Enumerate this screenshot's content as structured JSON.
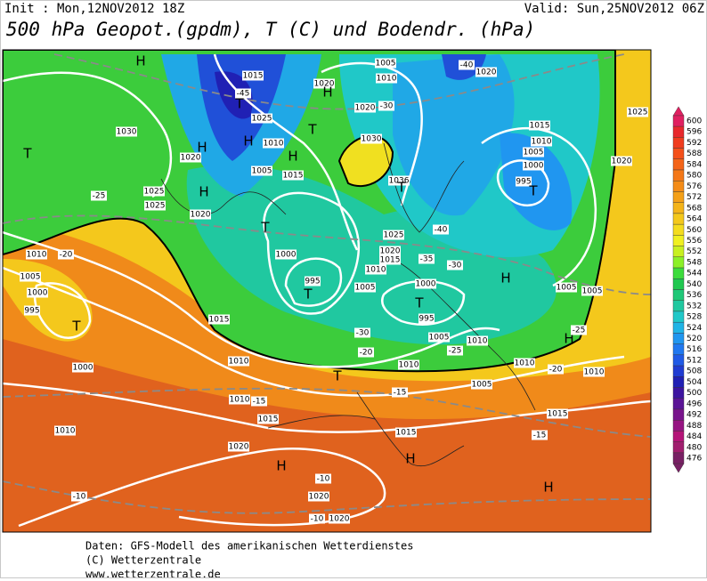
{
  "header": {
    "init": "Init : Mon,12NOV2012 18Z",
    "valid": "Valid: Sun,25NOV2012 06Z",
    "title": "500 hPa Geopot.(gpdm), T (C) und Bodendr. (hPa)"
  },
  "colorbar": {
    "labels": [
      600,
      596,
      592,
      588,
      584,
      580,
      576,
      572,
      568,
      564,
      560,
      556,
      552,
      548,
      544,
      540,
      536,
      532,
      528,
      524,
      520,
      516,
      512,
      508,
      504,
      500,
      496,
      492,
      488,
      484,
      480,
      476
    ],
    "colors": [
      "#e02060",
      "#e8282c",
      "#f03c1e",
      "#f4501a",
      "#f46418",
      "#f47818",
      "#f48c18",
      "#f4a018",
      "#f4b41a",
      "#f4c81c",
      "#f4dc1e",
      "#f0f020",
      "#c8f020",
      "#8cf028",
      "#3cdc3c",
      "#20c850",
      "#20c878",
      "#20c8a0",
      "#20c8c8",
      "#20b4e6",
      "#2096f0",
      "#2078f0",
      "#205ae6",
      "#203cd2",
      "#2020b4",
      "#3c14a0",
      "#5a1496",
      "#78148c",
      "#961482",
      "#b41478",
      "#a01e6e",
      "#782064"
    ]
  },
  "map": {
    "labels": [
      "H",
      "1015",
      "-45",
      "T",
      "1020",
      "H",
      "1005",
      "1010",
      "-40",
      "1020",
      "1025",
      "H",
      "H",
      "1030",
      "1020",
      "1010",
      "T",
      "1030",
      "1020",
      "-30",
      "T",
      "1015",
      "1010",
      "1005",
      "1000",
      "995",
      "T",
      "1025",
      "1020",
      "H",
      "1005",
      "1015",
      "1036",
      "T",
      "-25",
      "1025",
      "1025",
      "H",
      "1020",
      "T",
      "1025",
      "-40",
      "1010",
      "-20",
      "1000",
      "995",
      "T",
      "1020",
      "1015",
      "-35",
      "-30",
      "1010",
      "1005",
      "1000",
      "T",
      "995",
      "H",
      "1005",
      "1005",
      "1005",
      "1000",
      "995",
      "T",
      "1015",
      "-30",
      "1005",
      "1010",
      "H",
      "-25",
      "1000",
      "1010",
      "-20",
      "1010",
      "T",
      "-25",
      "1010",
      "-20",
      "1010",
      "1005",
      "-15",
      "1010",
      "-15",
      "1015",
      "1015",
      "1010",
      "1015",
      "-15",
      "1020",
      "H",
      "H",
      "-10",
      "-10",
      "1020",
      "-10",
      "1020",
      "H"
    ]
  },
  "footer": {
    "lines": [
      "Daten: GFS-Modell des amerikanischen Wetterdienstes",
      "(C) Wetterzentrale",
      "www.wetterzentrale.de"
    ]
  }
}
